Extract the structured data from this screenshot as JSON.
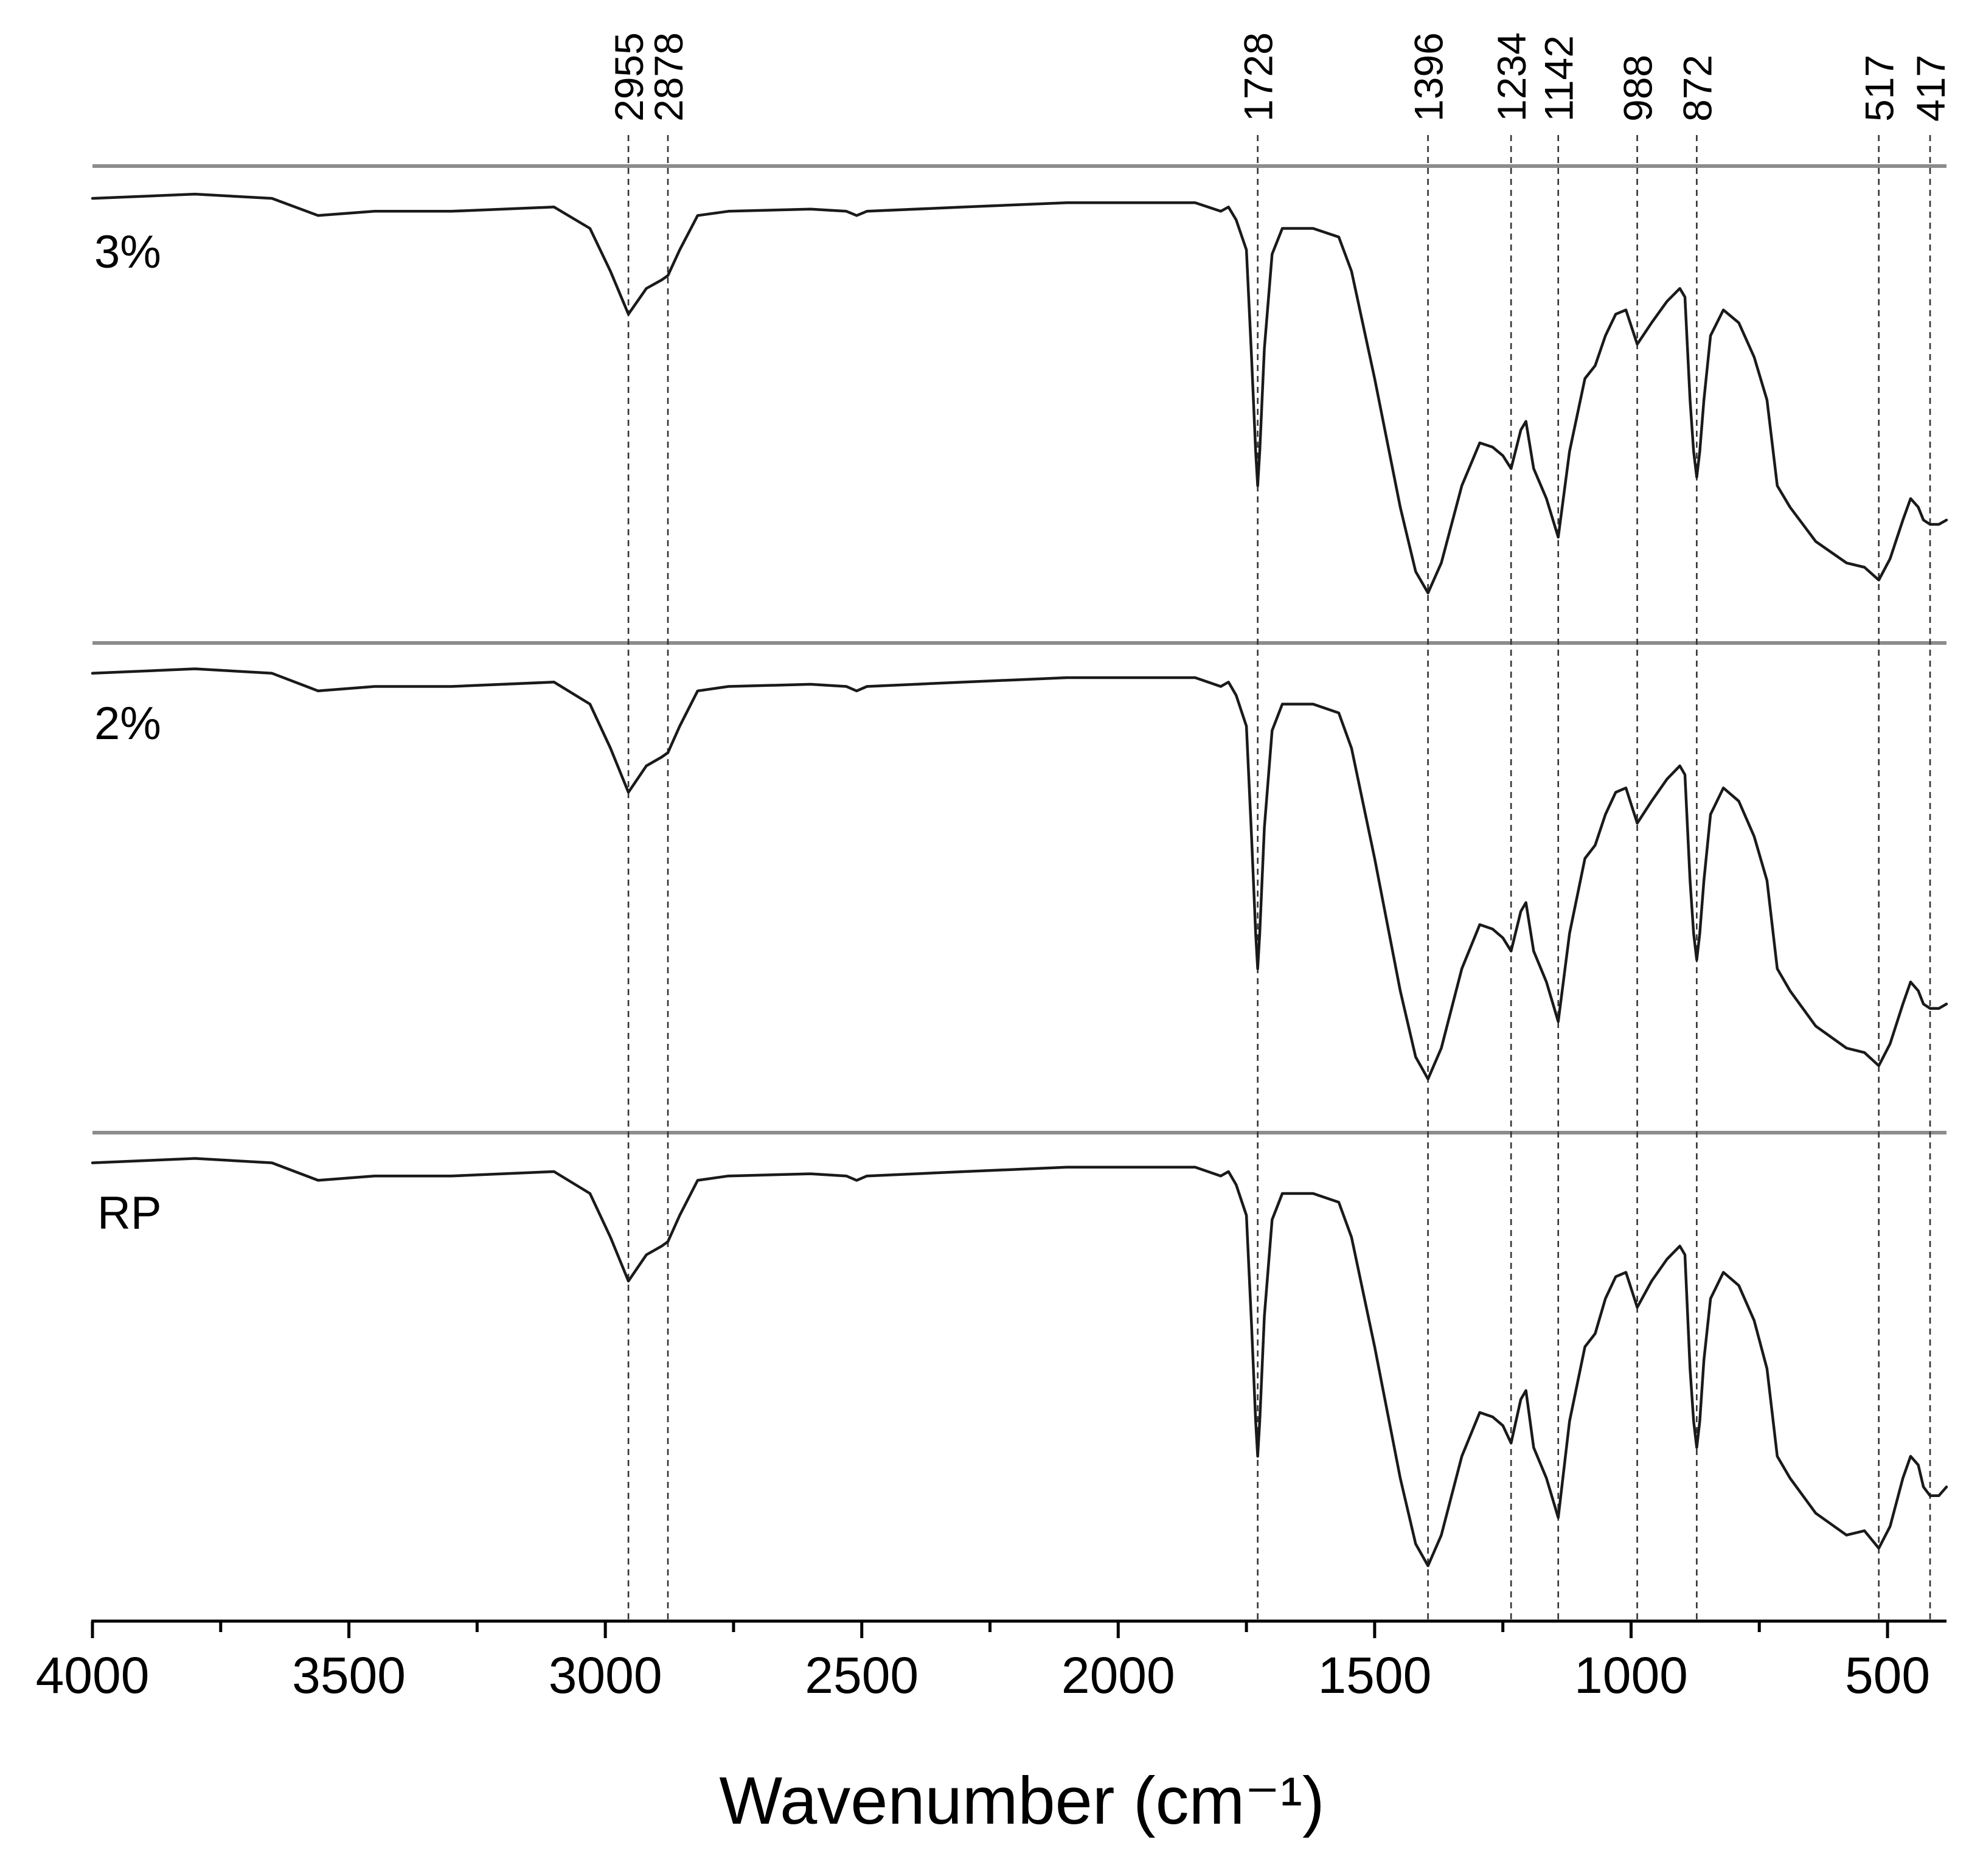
{
  "chart_data": {
    "type": "line",
    "title": "",
    "xlabel": "Wavenumber (cm⁻¹)",
    "ylabel": "",
    "xlim": [
      4000,
      385
    ],
    "x_reversed": true,
    "x_ticks": [
      4000,
      3500,
      3000,
      2500,
      2000,
      1500,
      1000,
      500
    ],
    "x_tick_labels": [
      "4000",
      "3500",
      "3000",
      "2500",
      "2000",
      "1500",
      "1000",
      "500"
    ],
    "y_units": "transmittance (a.u., stacked, unlabeled)",
    "peak_lines": [
      2955,
      2878,
      1728,
      1396,
      1234,
      1142,
      988,
      872,
      517,
      417
    ],
    "peak_labels": [
      "2955",
      "2878",
      "1728",
      "1396",
      "1234",
      "1142",
      "988",
      "872",
      "517",
      "417"
    ],
    "series": [
      {
        "name": "3%",
        "x": [
          4000,
          3800,
          3650,
          3560,
          3450,
          3300,
          3100,
          3030,
          2990,
          2955,
          2920,
          2890,
          2878,
          2855,
          2820,
          2760,
          2600,
          2530,
          2510,
          2490,
          2300,
          2100,
          1850,
          1800,
          1785,
          1770,
          1750,
          1740,
          1732,
          1728,
          1724,
          1715,
          1700,
          1680,
          1620,
          1570,
          1545,
          1500,
          1450,
          1420,
          1396,
          1370,
          1330,
          1295,
          1270,
          1250,
          1234,
          1215,
          1205,
          1190,
          1165,
          1142,
          1120,
          1090,
          1070,
          1050,
          1030,
          1010,
          988,
          960,
          930,
          905,
          895,
          885,
          878,
          872,
          866,
          858,
          845,
          820,
          790,
          760,
          735,
          715,
          690,
          640,
          580,
          545,
          517,
          495,
          470,
          455,
          440,
          430,
          417,
          400,
          385
        ],
        "y": [
          0.97,
          0.98,
          0.97,
          0.93,
          0.94,
          0.94,
          0.95,
          0.9,
          0.8,
          0.7,
          0.76,
          0.78,
          0.79,
          0.85,
          0.93,
          0.94,
          0.945,
          0.94,
          0.93,
          0.94,
          0.95,
          0.96,
          0.96,
          0.94,
          0.95,
          0.92,
          0.85,
          0.6,
          0.38,
          0.3,
          0.38,
          0.62,
          0.84,
          0.9,
          0.9,
          0.88,
          0.8,
          0.55,
          0.25,
          0.1,
          0.05,
          0.12,
          0.3,
          0.4,
          0.39,
          0.37,
          0.34,
          0.43,
          0.45,
          0.34,
          0.27,
          0.18,
          0.38,
          0.55,
          0.58,
          0.65,
          0.7,
          0.71,
          0.63,
          0.68,
          0.73,
          0.76,
          0.74,
          0.5,
          0.38,
          0.32,
          0.38,
          0.5,
          0.65,
          0.71,
          0.68,
          0.6,
          0.5,
          0.3,
          0.25,
          0.17,
          0.12,
          0.11,
          0.08,
          0.13,
          0.22,
          0.27,
          0.25,
          0.22,
          0.21,
          0.21,
          0.22
        ]
      },
      {
        "name": "2%",
        "x": [
          4000,
          3800,
          3650,
          3560,
          3450,
          3300,
          3100,
          3030,
          2990,
          2955,
          2920,
          2890,
          2878,
          2855,
          2820,
          2760,
          2600,
          2530,
          2510,
          2490,
          2300,
          2100,
          1850,
          1800,
          1785,
          1770,
          1750,
          1740,
          1732,
          1728,
          1724,
          1715,
          1700,
          1680,
          1620,
          1570,
          1545,
          1500,
          1450,
          1420,
          1396,
          1370,
          1330,
          1295,
          1270,
          1250,
          1234,
          1215,
          1205,
          1190,
          1165,
          1142,
          1120,
          1090,
          1070,
          1050,
          1030,
          1010,
          988,
          960,
          930,
          905,
          895,
          885,
          878,
          872,
          866,
          858,
          845,
          820,
          790,
          760,
          735,
          715,
          690,
          640,
          580,
          545,
          517,
          495,
          470,
          455,
          440,
          430,
          417,
          400,
          385
        ],
        "y": [
          0.97,
          0.98,
          0.97,
          0.93,
          0.94,
          0.94,
          0.95,
          0.9,
          0.8,
          0.7,
          0.76,
          0.78,
          0.79,
          0.85,
          0.93,
          0.94,
          0.945,
          0.94,
          0.93,
          0.94,
          0.95,
          0.96,
          0.96,
          0.94,
          0.95,
          0.92,
          0.85,
          0.6,
          0.38,
          0.3,
          0.38,
          0.62,
          0.84,
          0.9,
          0.9,
          0.88,
          0.8,
          0.55,
          0.25,
          0.1,
          0.05,
          0.12,
          0.3,
          0.4,
          0.39,
          0.37,
          0.34,
          0.43,
          0.45,
          0.34,
          0.27,
          0.18,
          0.38,
          0.55,
          0.58,
          0.65,
          0.7,
          0.71,
          0.63,
          0.68,
          0.73,
          0.76,
          0.74,
          0.5,
          0.38,
          0.32,
          0.38,
          0.5,
          0.65,
          0.71,
          0.68,
          0.6,
          0.5,
          0.3,
          0.25,
          0.17,
          0.12,
          0.11,
          0.08,
          0.13,
          0.22,
          0.27,
          0.25,
          0.22,
          0.21,
          0.21,
          0.22
        ]
      },
      {
        "name": "RP",
        "x": [
          4000,
          3800,
          3650,
          3560,
          3450,
          3300,
          3100,
          3030,
          2990,
          2955,
          2920,
          2890,
          2878,
          2855,
          2820,
          2760,
          2600,
          2530,
          2510,
          2490,
          2300,
          2100,
          1850,
          1800,
          1785,
          1770,
          1750,
          1740,
          1732,
          1728,
          1724,
          1715,
          1700,
          1680,
          1620,
          1570,
          1545,
          1500,
          1450,
          1420,
          1396,
          1370,
          1330,
          1295,
          1270,
          1250,
          1234,
          1215,
          1205,
          1190,
          1165,
          1142,
          1120,
          1090,
          1070,
          1050,
          1030,
          1010,
          988,
          960,
          930,
          905,
          895,
          885,
          878,
          872,
          866,
          858,
          845,
          820,
          790,
          760,
          735,
          715,
          690,
          640,
          580,
          545,
          517,
          495,
          470,
          455,
          440,
          430,
          417,
          400,
          385
        ],
        "y": [
          0.97,
          0.98,
          0.97,
          0.93,
          0.94,
          0.94,
          0.95,
          0.9,
          0.8,
          0.7,
          0.76,
          0.78,
          0.79,
          0.85,
          0.93,
          0.94,
          0.945,
          0.94,
          0.93,
          0.94,
          0.95,
          0.96,
          0.96,
          0.94,
          0.95,
          0.92,
          0.85,
          0.6,
          0.38,
          0.3,
          0.38,
          0.62,
          0.84,
          0.9,
          0.9,
          0.88,
          0.8,
          0.55,
          0.25,
          0.1,
          0.05,
          0.12,
          0.3,
          0.4,
          0.39,
          0.37,
          0.33,
          0.43,
          0.45,
          0.32,
          0.25,
          0.16,
          0.38,
          0.55,
          0.58,
          0.66,
          0.71,
          0.72,
          0.64,
          0.7,
          0.75,
          0.78,
          0.76,
          0.5,
          0.38,
          0.32,
          0.38,
          0.52,
          0.66,
          0.72,
          0.69,
          0.61,
          0.5,
          0.3,
          0.25,
          0.17,
          0.12,
          0.13,
          0.09,
          0.14,
          0.25,
          0.3,
          0.28,
          0.23,
          0.21,
          0.21,
          0.23
        ]
      }
    ],
    "grid": false,
    "legend": "inline series labels at top-left of each panel"
  }
}
